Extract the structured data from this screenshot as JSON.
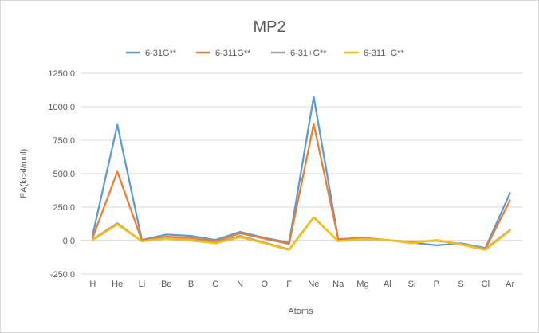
{
  "chart_data": {
    "type": "line",
    "title": "MP2",
    "xlabel": "Atoms",
    "ylabel": "EA(kcal/mol)",
    "ylim": [
      -250,
      1250
    ],
    "yticks": [
      -250,
      0,
      250,
      500,
      750,
      1000,
      1250
    ],
    "ytick_labels": [
      "-250.0",
      "0.0",
      "250.0",
      "500.0",
      "750.0",
      "1000.0",
      "1250.0"
    ],
    "grid": true,
    "legend_position": "top",
    "categories": [
      "H",
      "He",
      "Li",
      "Be",
      "B",
      "C",
      "N",
      "O",
      "F",
      "Ne",
      "Na",
      "Mg",
      "Al",
      "Si",
      "P",
      "S",
      "Cl",
      "Ar"
    ],
    "series": [
      {
        "name": "6-31G**",
        "color": "#5B9BD5",
        "values": [
          45,
          865,
          5,
          45,
          35,
          5,
          65,
          20,
          -15,
          1075,
          10,
          20,
          5,
          -15,
          -35,
          -20,
          -55,
          355
        ]
      },
      {
        "name": "6-311G**",
        "color": "#ED7D31",
        "values": [
          25,
          515,
          0,
          30,
          20,
          -5,
          55,
          15,
          -25,
          870,
          10,
          20,
          5,
          -10,
          0,
          -25,
          -60,
          300
        ]
      },
      {
        "name": "6-31+G**",
        "color": "#A5A5A5",
        "values": [
          10,
          130,
          -5,
          20,
          5,
          -15,
          35,
          -15,
          -65,
          175,
          -5,
          15,
          5,
          -15,
          5,
          -25,
          -60,
          80
        ]
      },
      {
        "name": "6-311+G**",
        "color": "#FFC000",
        "values": [
          5,
          120,
          -5,
          15,
          0,
          -20,
          25,
          -20,
          -70,
          170,
          -5,
          10,
          5,
          -20,
          5,
          -30,
          -70,
          75
        ]
      }
    ]
  }
}
